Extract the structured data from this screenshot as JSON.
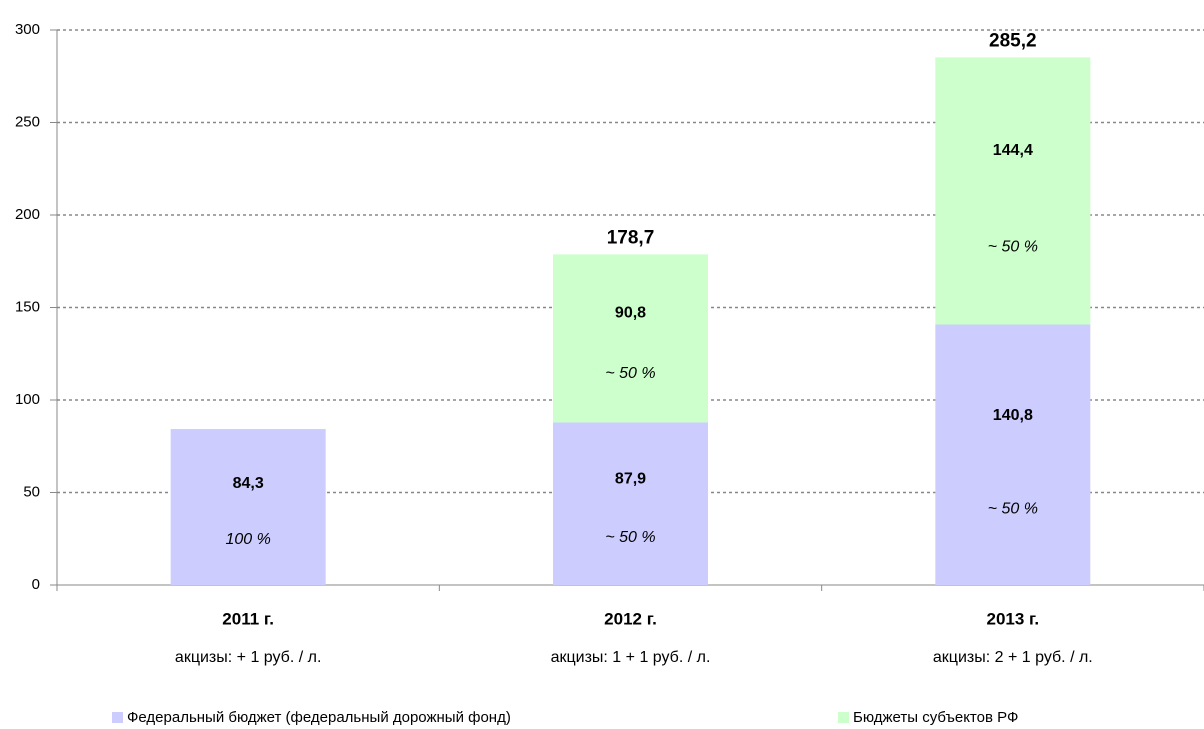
{
  "chart_data": {
    "type": "stacked_bar",
    "categories": [
      "2011 г.",
      "2012 г.",
      "2013 г."
    ],
    "category_notes": [
      "акцизы: + 1 руб. / л.",
      "акцизы: 1 + 1 руб. / л.",
      "акцизы: 2 + 1 руб. / л."
    ],
    "series": [
      {
        "name": "Федеральный бюджет (федеральный дорожный фонд)",
        "color": "#ccccff",
        "values": [
          84.3,
          87.9,
          140.8
        ],
        "value_labels": [
          "84,3",
          "87,9",
          "140,8"
        ],
        "share_labels": [
          "100 %",
          "~ 50 %",
          "~ 50 %"
        ]
      },
      {
        "name": "Бюджеты субъектов РФ",
        "color": "#ccffcc",
        "values": [
          null,
          90.8,
          144.4
        ],
        "value_labels": [
          null,
          "90,8",
          "144,4"
        ],
        "share_labels": [
          null,
          "~ 50 %",
          "~ 50 %"
        ]
      }
    ],
    "totals": [
      null,
      178.7,
      285.2
    ],
    "total_labels": [
      null,
      "178,7",
      "285,2"
    ],
    "ylim": [
      0,
      300
    ],
    "yticks": [
      0,
      50,
      100,
      150,
      200,
      250,
      300
    ],
    "grid": true,
    "legend": "bottom"
  }
}
